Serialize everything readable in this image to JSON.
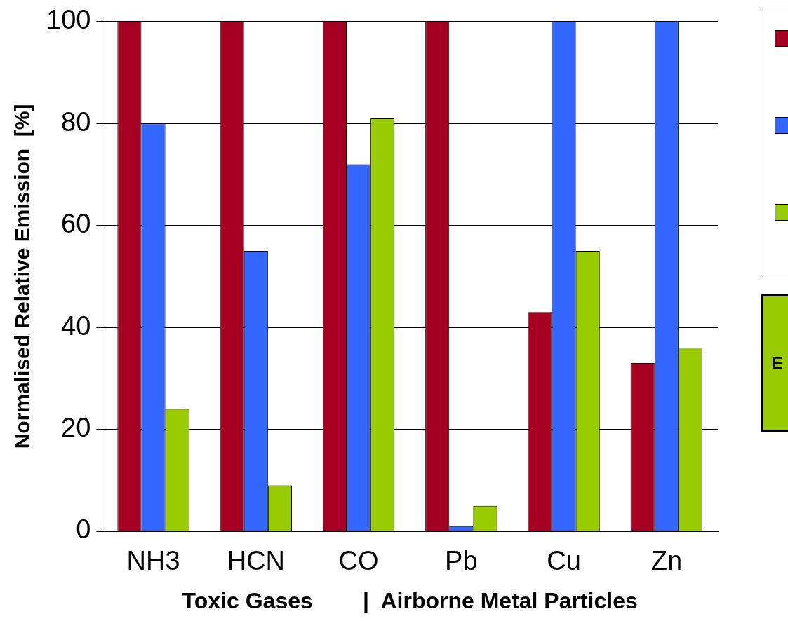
{
  "chart_data": {
    "type": "bar",
    "xlabel": "Toxic Gases        |  Airborne Metal Particles",
    "ylabel": "Normalised Relative Emission  [%]",
    "categories": [
      "NH3",
      "HCN",
      "CO",
      "Pb",
      "Cu",
      "Zn"
    ],
    "series": [
      {
        "color": "#a50021",
        "values": [
          100,
          100,
          100,
          100,
          43,
          33
        ]
      },
      {
        "color": "#3366ff",
        "values": [
          80,
          55,
          72,
          1,
          100,
          100
        ]
      },
      {
        "color": "#99cc00",
        "values": [
          24,
          9,
          81,
          5,
          55,
          36
        ]
      }
    ],
    "ylim": [
      0,
      100
    ],
    "yticks": [
      0,
      20,
      40,
      60,
      80,
      100
    ],
    "grid": "y",
    "annotations": [
      "E"
    ]
  }
}
